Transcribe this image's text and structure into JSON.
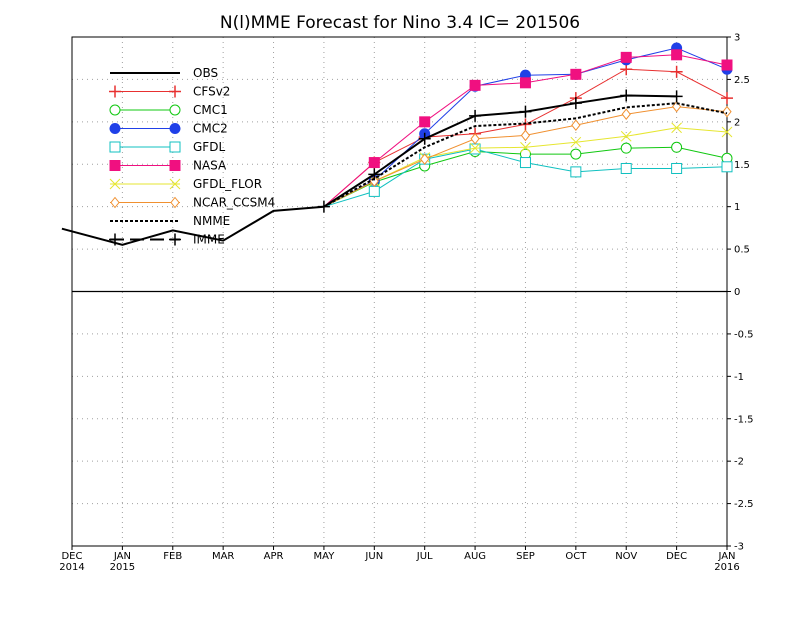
{
  "chart_data": {
    "type": "line",
    "title": "N(l)MME Forecast for Nino 3.4  IC= 201506",
    "xlabel": "",
    "ylabel": "",
    "x_ticks": [
      {
        "top": "DEC",
        "bottom": "2014"
      },
      {
        "top": "JAN",
        "bottom": "2015"
      },
      {
        "top": "FEB",
        "bottom": ""
      },
      {
        "top": "MAR",
        "bottom": ""
      },
      {
        "top": "APR",
        "bottom": ""
      },
      {
        "top": "MAY",
        "bottom": ""
      },
      {
        "top": "JUN",
        "bottom": ""
      },
      {
        "top": "JUL",
        "bottom": ""
      },
      {
        "top": "AUG",
        "bottom": ""
      },
      {
        "top": "SEP",
        "bottom": ""
      },
      {
        "top": "OCT",
        "bottom": ""
      },
      {
        "top": "NOV",
        "bottom": ""
      },
      {
        "top": "DEC",
        "bottom": ""
      },
      {
        "top": "JAN",
        "bottom": "2016"
      }
    ],
    "y_ticks": [
      "3",
      "2.5",
      "2",
      "1.5",
      "1",
      "0.5",
      "0",
      "-0.5",
      "-1",
      "-1.5",
      "-2",
      "-2.5",
      "-3"
    ],
    "ylim": [
      -3,
      3
    ],
    "xlim": [
      -0.2,
      13
    ],
    "grid": true,
    "legend_position": "top-left",
    "series": [
      {
        "name": "OBS",
        "color": "#000000",
        "marker": "none",
        "width": 2,
        "dash": "",
        "x": [
          -0.2,
          1,
          2,
          3,
          4,
          5
        ],
        "values": [
          0.74,
          0.55,
          0.72,
          0.6,
          0.95,
          1.0
        ]
      },
      {
        "name": "CFSv2",
        "color": "#e83030",
        "marker": "plus",
        "width": 1,
        "dash": "",
        "x": [
          5,
          6,
          7,
          8,
          9,
          10,
          11,
          12,
          13
        ],
        "values": [
          1.0,
          1.52,
          1.82,
          1.86,
          1.97,
          2.28,
          2.62,
          2.59,
          2.28
        ]
      },
      {
        "name": "CMC1",
        "color": "#10c810",
        "marker": "circle-open",
        "width": 1,
        "dash": "",
        "x": [
          5,
          6,
          7,
          8,
          9,
          10,
          11,
          12,
          13
        ],
        "values": [
          1.0,
          1.29,
          1.48,
          1.65,
          1.62,
          1.62,
          1.69,
          1.7,
          1.57
        ]
      },
      {
        "name": "CMC2",
        "color": "#2040e8",
        "marker": "circle-filled",
        "width": 1,
        "dash": "",
        "x": [
          5,
          6,
          7,
          8,
          9,
          10,
          11,
          12,
          13
        ],
        "values": [
          1.0,
          1.31,
          1.86,
          2.42,
          2.55,
          2.56,
          2.73,
          2.87,
          2.62
        ]
      },
      {
        "name": "GFDL",
        "color": "#10c0c0",
        "marker": "square-open",
        "width": 1,
        "dash": "",
        "x": [
          5,
          6,
          7,
          8,
          9,
          10,
          11,
          12,
          13
        ],
        "values": [
          1.0,
          1.18,
          1.56,
          1.68,
          1.52,
          1.41,
          1.45,
          1.45,
          1.47
        ]
      },
      {
        "name": "NASA",
        "color": "#f01080",
        "marker": "square-filled",
        "width": 1,
        "dash": "",
        "x": [
          5,
          6,
          7,
          8,
          9,
          10,
          11,
          12,
          13
        ],
        "values": [
          1.0,
          1.52,
          2.0,
          2.43,
          2.46,
          2.56,
          2.76,
          2.79,
          2.67
        ]
      },
      {
        "name": "GFDL_FLOR",
        "color": "#e6e630",
        "marker": "x",
        "width": 1,
        "dash": "",
        "x": [
          5,
          6,
          7,
          8,
          9,
          10,
          11,
          12,
          13
        ],
        "values": [
          1.0,
          1.3,
          1.58,
          1.69,
          1.7,
          1.76,
          1.83,
          1.93,
          1.88
        ]
      },
      {
        "name": "NCAR_CCSM4",
        "color": "#f09030",
        "marker": "diamond",
        "width": 1,
        "dash": "",
        "x": [
          5,
          6,
          7,
          8,
          9,
          10,
          11,
          12,
          13
        ],
        "values": [
          1.0,
          1.3,
          1.56,
          1.8,
          1.84,
          1.96,
          2.09,
          2.18,
          2.12
        ]
      },
      {
        "name": "NMME",
        "color": "#000000",
        "marker": "none",
        "width": 2,
        "dash": "3,2",
        "x": [
          5,
          6,
          7,
          8,
          9,
          10,
          11,
          12,
          13
        ],
        "values": [
          1.0,
          1.33,
          1.7,
          1.95,
          1.98,
          2.04,
          2.17,
          2.22,
          2.1
        ]
      },
      {
        "name": "IMME",
        "color": "#000000",
        "marker": "plus",
        "width": 2,
        "dash": "",
        "x": [
          5,
          6,
          7,
          8,
          9,
          10,
          11,
          12
        ],
        "values": [
          1.0,
          1.38,
          1.8,
          2.07,
          2.12,
          2.22,
          2.31,
          2.3
        ]
      }
    ]
  }
}
